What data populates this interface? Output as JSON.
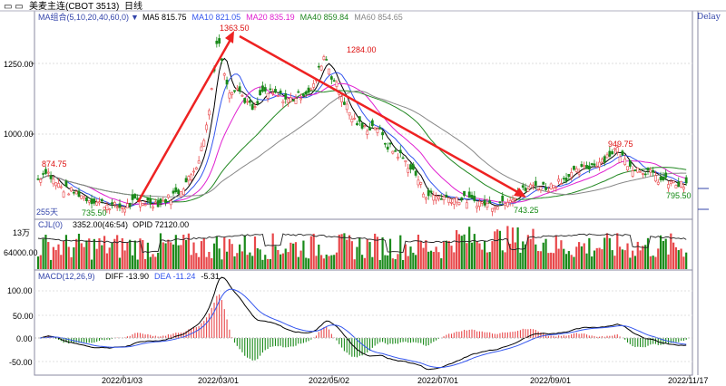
{
  "title_bar": {
    "title": "美麦主连(CBOT 3513)",
    "period": "日线",
    "delay": "Delay"
  },
  "legend_main": {
    "label": "MA组合(5,10,20,40,60,0)",
    "items": [
      {
        "text": "MA5 815.75",
        "color": "#000000"
      },
      {
        "text": "MA10 821.05",
        "color": "#3355ee"
      },
      {
        "text": "MA20 835.19",
        "color": "#e020d0"
      },
      {
        "text": "MA40 859.84",
        "color": "#228822"
      },
      {
        "text": "MA60 854.65",
        "color": "#888888"
      }
    ]
  },
  "legend_vol": {
    "label": "CJL(0)",
    "items": [
      {
        "text": "3352.00(46:54)",
        "color": "#000000"
      },
      {
        "text": "OPID 72120.00",
        "color": "#000000"
      }
    ]
  },
  "legend_macd": {
    "label": "MACD(12,26,9)",
    "items": [
      {
        "text": "DIFF -13.90",
        "color": "#000000"
      },
      {
        "text": "DEA -11.24",
        "color": "#3355ee"
      },
      {
        "text": "-5.31",
        "color": "#000000"
      }
    ]
  },
  "price_labels": [
    {
      "text": "1363.50",
      "color": "#dd1111"
    },
    {
      "text": "1284.00",
      "color": "#dd1111"
    },
    {
      "text": "874.75",
      "color": "#dd1111"
    },
    {
      "text": "949.75",
      "color": "#dd1111"
    },
    {
      "text": "735.50",
      "color": "#118811"
    },
    {
      "text": "743.25",
      "color": "#118811"
    },
    {
      "text": "795.50",
      "color": "#118811"
    }
  ],
  "bars_count_label": "255天",
  "y_main_ticks": [
    "1250.00",
    "1000.00"
  ],
  "y_vol_ticks": [
    "13万",
    "64000.00"
  ],
  "y_macd_ticks": [
    "100.00",
    "50.00",
    "0.00",
    "-50.00"
  ],
  "x_ticks": [
    "2022/01/03",
    "2022/03/01",
    "2022/05/02",
    "2022/07/01",
    "2022/09/01",
    "2022/11/17"
  ],
  "colors": {
    "up": "#e8474a",
    "down": "#1a8a1a",
    "arrow": "#ee2222"
  }
}
